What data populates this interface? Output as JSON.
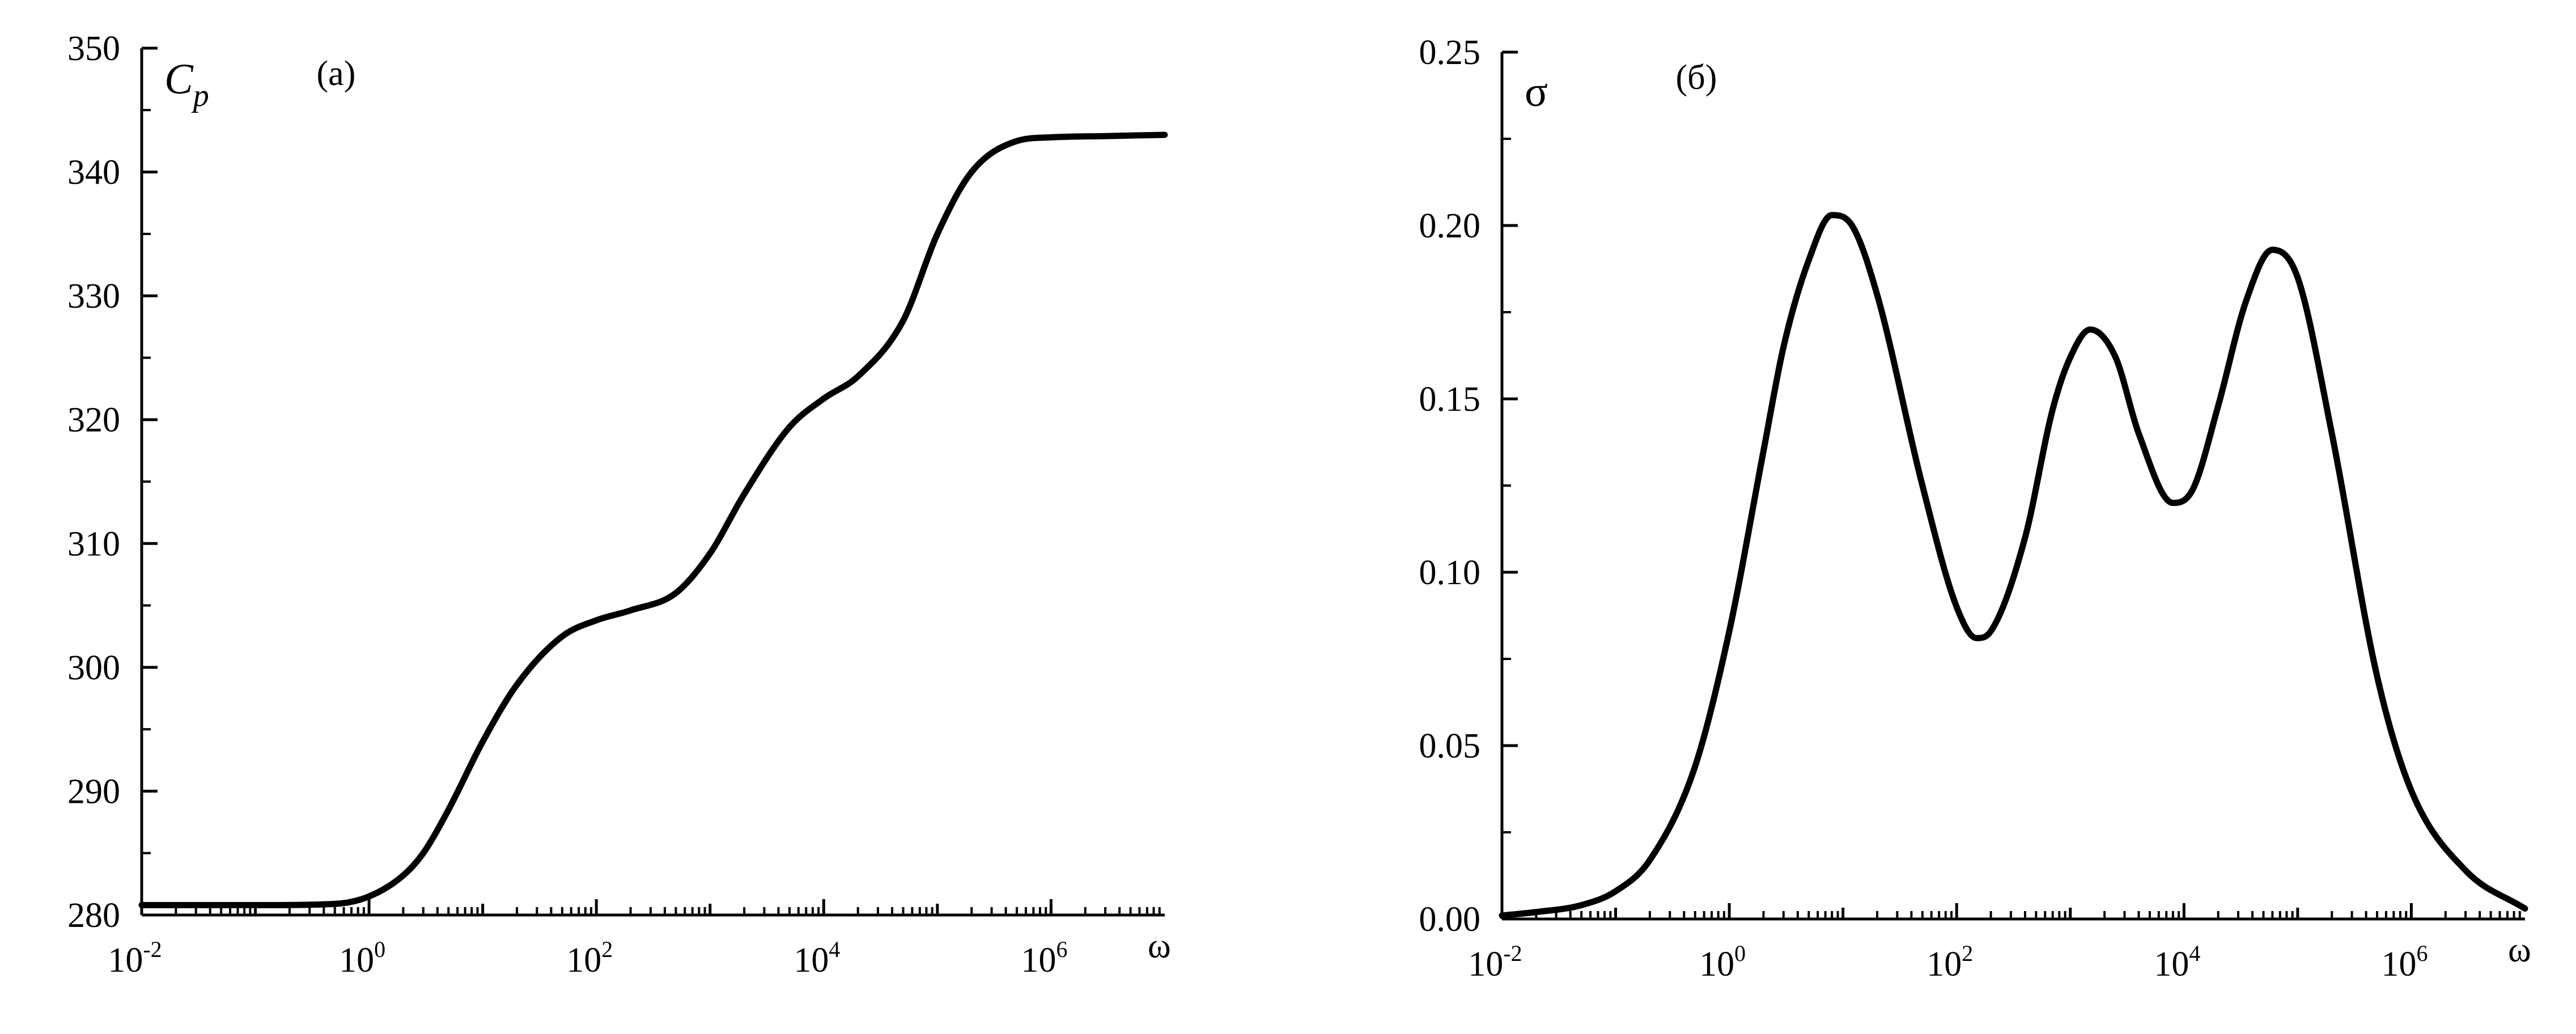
{
  "chart_data": [
    {
      "type": "line",
      "title": "(a)",
      "ylabel": "C",
      "ylabel_sub": "p",
      "xlabel": "ω",
      "x_scale": "log",
      "xlim": [
        0.01,
        10000000
      ],
      "ylim": [
        280,
        350
      ],
      "x_ticks": [
        {
          "base": "10",
          "exp": "-2",
          "value": 0.01
        },
        {
          "base": "10",
          "exp": "0",
          "value": 1
        },
        {
          "base": "10",
          "exp": "2",
          "value": 100
        },
        {
          "base": "10",
          "exp": "4",
          "value": 10000
        },
        {
          "base": "10",
          "exp": "6",
          "value": 1000000
        }
      ],
      "y_ticks": [
        "280",
        "290",
        "300",
        "310",
        "320",
        "330",
        "340",
        "350"
      ],
      "y_tick_values": [
        280,
        290,
        300,
        310,
        320,
        330,
        340,
        350
      ],
      "series": [
        {
          "x": [
            0.01,
            0.1,
            0.5,
            1,
            2,
            3,
            5,
            10,
            20,
            50,
            100,
            200,
            500,
            1000,
            2000,
            5000,
            10000,
            20000,
            50000,
            100000,
            200000,
            500000,
            1000000,
            3000000,
            10000000
          ],
          "y": [
            280.8,
            280.8,
            280.9,
            281.5,
            283.2,
            285.0,
            288.5,
            294.0,
            298.6,
            302.5,
            303.8,
            304.6,
            306.0,
            309.2,
            314.0,
            319.4,
            321.7,
            323.5,
            328.0,
            335.0,
            340.0,
            342.5,
            342.8,
            342.9,
            343.0
          ]
        }
      ]
    },
    {
      "type": "line",
      "title": "(б)",
      "ylabel": "σ",
      "xlabel": "ω",
      "x_scale": "log",
      "xlim": [
        0.01,
        10000000
      ],
      "ylim": [
        0,
        0.25
      ],
      "x_ticks": [
        {
          "base": "10",
          "exp": "-2",
          "value": 0.01
        },
        {
          "base": "10",
          "exp": "0",
          "value": 1
        },
        {
          "base": "10",
          "exp": "2",
          "value": 100
        },
        {
          "base": "10",
          "exp": "4",
          "value": 10000
        },
        {
          "base": "10",
          "exp": "6",
          "value": 1000000
        }
      ],
      "y_ticks": [
        "0.00",
        "0.05",
        "0.10",
        "0.15",
        "0.20",
        "0.25"
      ],
      "y_tick_values": [
        0,
        0.05,
        0.1,
        0.15,
        0.2,
        0.25
      ],
      "series": [
        {
          "x": [
            0.01,
            0.02,
            0.05,
            0.1,
            0.2,
            0.5,
            1,
            2,
            3,
            5,
            8,
            12,
            20,
            50,
            100,
            150,
            200,
            400,
            700,
            1000,
            1500,
            2500,
            4000,
            8000,
            12000,
            20000,
            35000,
            60000,
            100000,
            200000,
            500000,
            1000000,
            3000000,
            10000000
          ],
          "y": [
            0.001,
            0.002,
            0.004,
            0.008,
            0.017,
            0.044,
            0.083,
            0.135,
            0.165,
            0.19,
            0.203,
            0.2,
            0.18,
            0.125,
            0.09,
            0.081,
            0.083,
            0.11,
            0.147,
            0.162,
            0.17,
            0.162,
            0.14,
            0.12,
            0.124,
            0.148,
            0.178,
            0.193,
            0.185,
            0.14,
            0.07,
            0.037,
            0.014,
            0.003
          ]
        }
      ]
    }
  ]
}
